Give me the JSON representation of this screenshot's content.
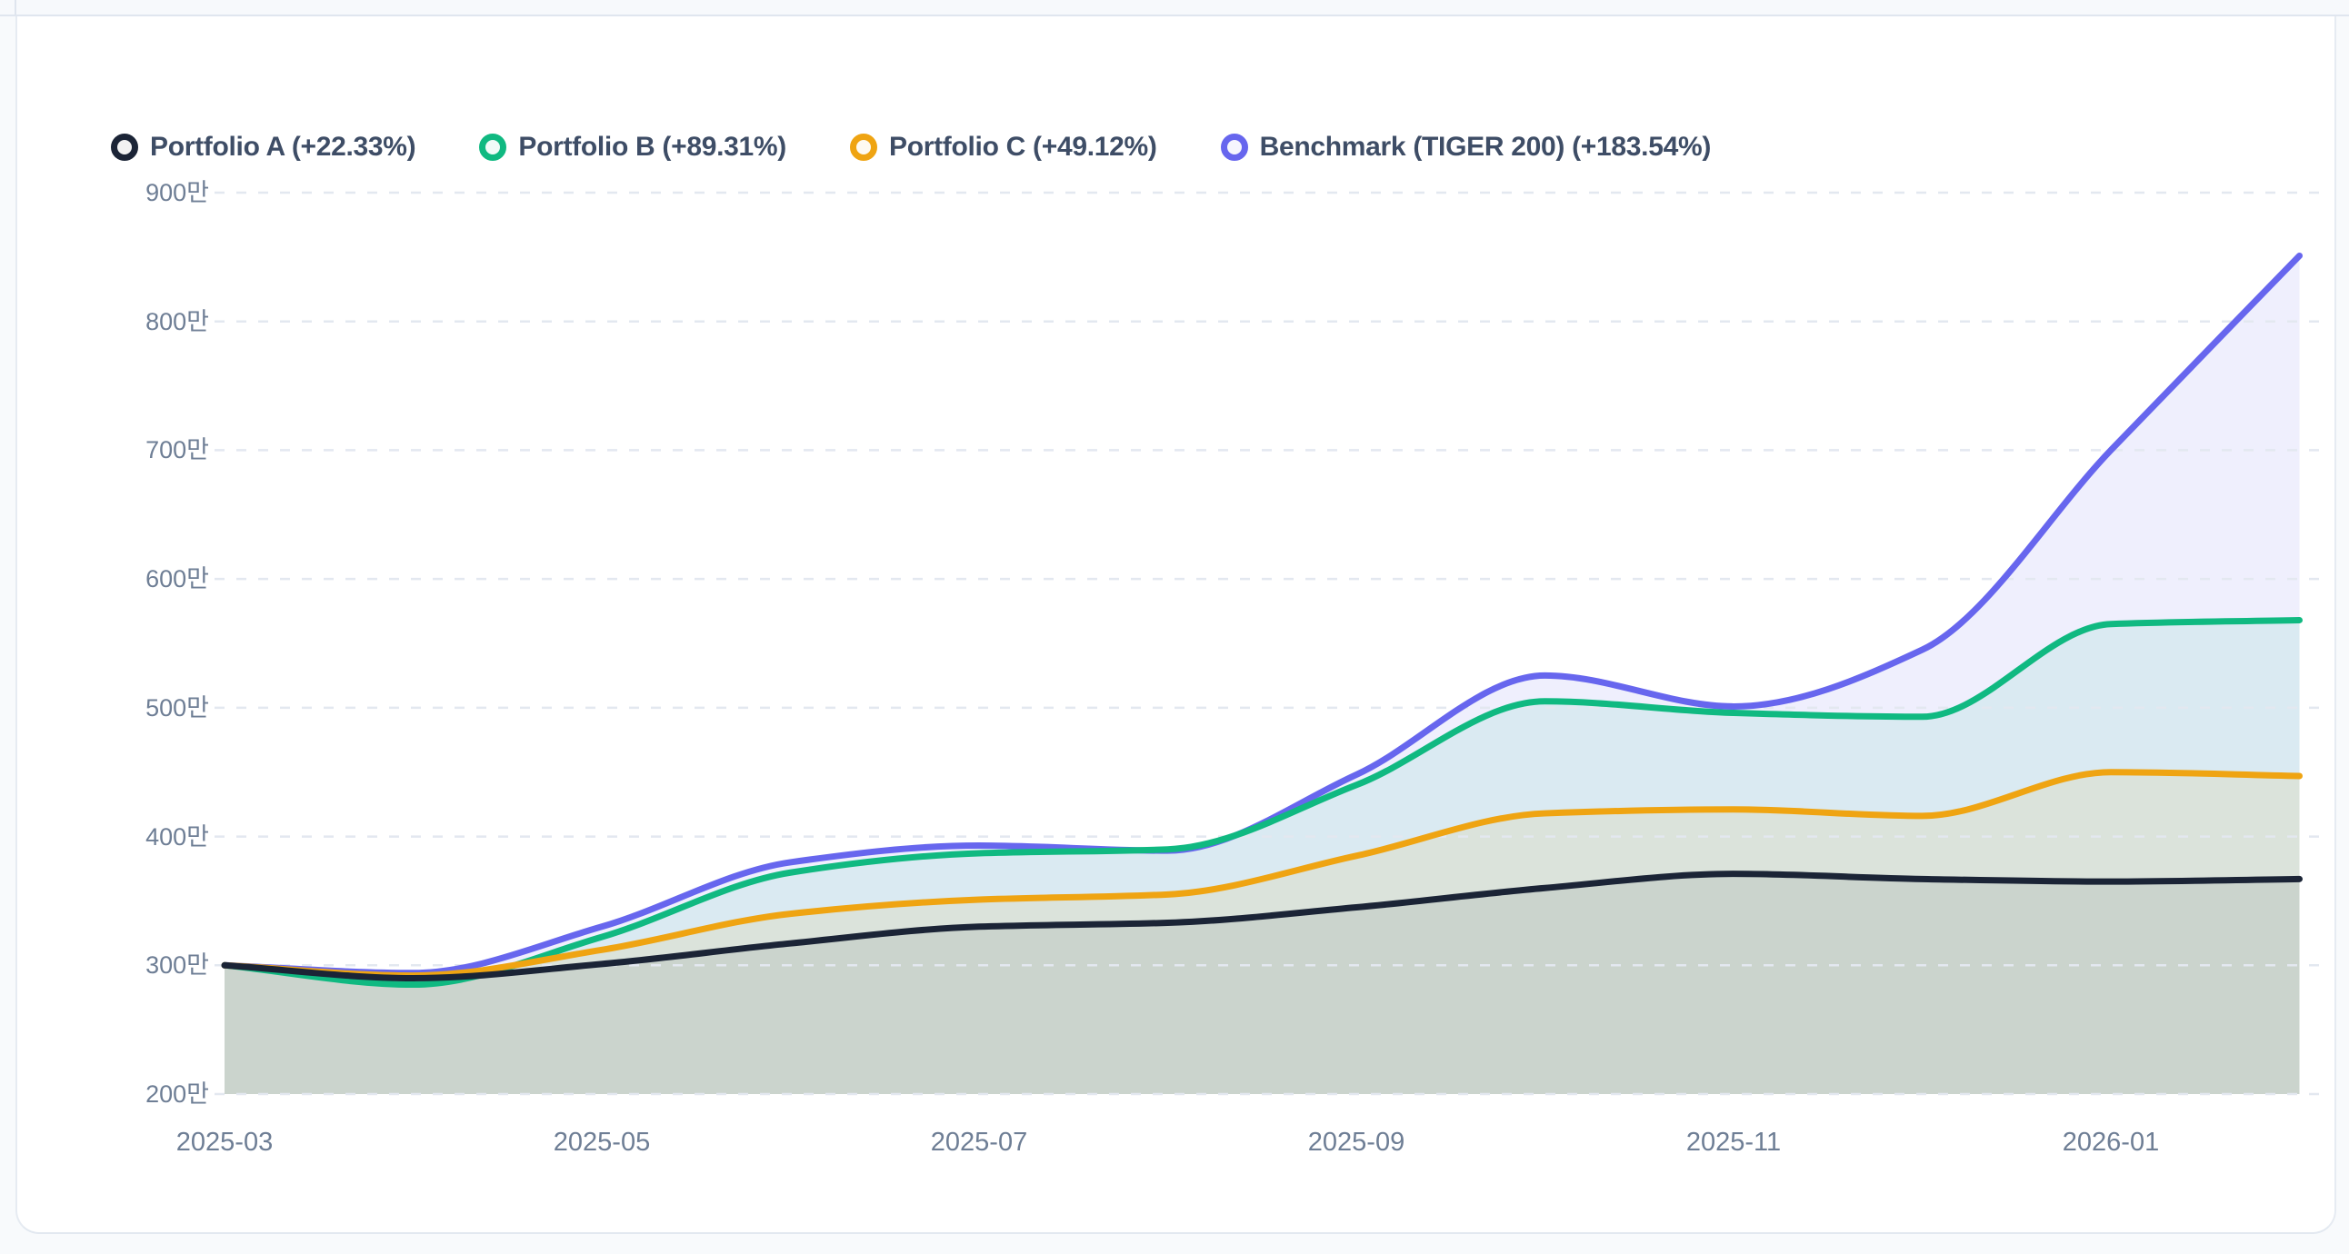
{
  "card": {
    "background": "#ffffff",
    "border_color": "#e2e8f0"
  },
  "legend": {
    "position": "top",
    "items": [
      {
        "label": "Portfolio A (+22.33%)",
        "color": "#1b2436"
      },
      {
        "label": "Portfolio B (+89.31%)",
        "color": "#10b981"
      },
      {
        "label": "Portfolio C (+49.12%)",
        "color": "#efa412"
      },
      {
        "label": "Benchmark (TIGER 200) (+183.54%)",
        "color": "#6766ee"
      }
    ]
  },
  "chart_data": {
    "type": "area",
    "title": "",
    "xlabel": "",
    "ylabel": "",
    "unit": "만",
    "grid": true,
    "legend_position": "top",
    "ylim": [
      200,
      900
    ],
    "x": [
      "2025-03",
      "2025-04",
      "2025-05",
      "2025-06",
      "2025-07",
      "2025-08",
      "2025-09",
      "2025-10",
      "2025-11",
      "2025-12",
      "2026-01",
      "2026-02"
    ],
    "series": [
      {
        "name": "Portfolio A (+22.33%)",
        "color": "#1b2436",
        "fill": "rgba(27,36,54,0.08)",
        "values": [
          300,
          290,
          301,
          317,
          330,
          333,
          345,
          360,
          371,
          367,
          365,
          367
        ]
      },
      {
        "name": "Portfolio B (+89.31%)",
        "color": "#10b981",
        "fill": "rgba(16,185,129,0.09)",
        "values": [
          300,
          285,
          322,
          372,
          387,
          390,
          440,
          505,
          496,
          493,
          565,
          568
        ]
      },
      {
        "name": "Portfolio C (+49.12%)",
        "color": "#efa412",
        "fill": "rgba(239,164,18,0.10)",
        "values": [
          300,
          292,
          312,
          340,
          351,
          355,
          385,
          418,
          421,
          416,
          450,
          447
        ]
      },
      {
        "name": "Benchmark (TIGER 200) (+183.54%)",
        "color": "#6766ee",
        "fill": "rgba(102,102,238,0.10)",
        "values": [
          300,
          294,
          330,
          380,
          393,
          389,
          448,
          525,
          501,
          545,
          700,
          851
        ]
      }
    ],
    "y_ticks": [
      {
        "value": 900,
        "label": "900만"
      },
      {
        "value": 800,
        "label": "800만"
      },
      {
        "value": 700,
        "label": "700만"
      },
      {
        "value": 600,
        "label": "600만"
      },
      {
        "value": 500,
        "label": "500만"
      },
      {
        "value": 400,
        "label": "400만"
      },
      {
        "value": 300,
        "label": "300만"
      },
      {
        "value": 200,
        "label": "200만"
      }
    ],
    "x_ticks": [
      {
        "index": 0,
        "label": "2025-03"
      },
      {
        "index": 2,
        "label": "2025-05"
      },
      {
        "index": 4,
        "label": "2025-07"
      },
      {
        "index": 6,
        "label": "2025-09"
      },
      {
        "index": 8,
        "label": "2025-11"
      },
      {
        "index": 10,
        "label": "2026-01"
      }
    ]
  }
}
